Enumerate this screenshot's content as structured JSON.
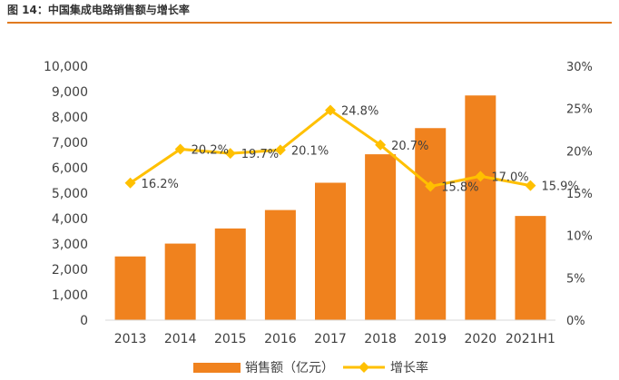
{
  "figure": {
    "title": "图 14：中国集成电路销售额与增长率"
  },
  "colors": {
    "bar": "#F0821E",
    "line": "#FFC000",
    "rule": "#E07A1F",
    "axis_text": "#404040"
  },
  "chart_data": {
    "type": "bar",
    "title": "",
    "categories": [
      "2013",
      "2014",
      "2015",
      "2016",
      "2017",
      "2018",
      "2019",
      "2020",
      "2021H1"
    ],
    "series": [
      {
        "name": "销售额（亿元）",
        "type": "bar",
        "axis": "left",
        "values": [
          2509,
          3015,
          3610,
          4336,
          5411,
          6532,
          7562,
          8848,
          4103
        ]
      },
      {
        "name": "增长率",
        "type": "line",
        "axis": "right",
        "values": [
          16.2,
          20.2,
          19.7,
          20.1,
          24.8,
          20.7,
          15.8,
          17.0,
          15.9
        ],
        "labels": [
          "16.2%",
          "20.2%",
          "19.7%",
          "20.1%",
          "24.8%",
          "20.7%",
          "15.8%",
          "17.0%",
          "15.9%"
        ]
      }
    ],
    "y_left": {
      "range": [
        0,
        10000
      ],
      "ticks": [
        0,
        1000,
        2000,
        3000,
        4000,
        5000,
        6000,
        7000,
        8000,
        9000,
        10000
      ],
      "tick_labels": [
        "0",
        "1,000",
        "2,000",
        "3,000",
        "4,000",
        "5,000",
        "6,000",
        "7,000",
        "8,000",
        "9,000",
        "10,000"
      ]
    },
    "y_right": {
      "range": [
        0,
        30
      ],
      "ticks": [
        0,
        5,
        10,
        15,
        20,
        25,
        30
      ],
      "tick_labels": [
        "0%",
        "5%",
        "10%",
        "15%",
        "20%",
        "25%",
        "30%"
      ]
    },
    "grid": false,
    "legend_position": "bottom-center"
  }
}
